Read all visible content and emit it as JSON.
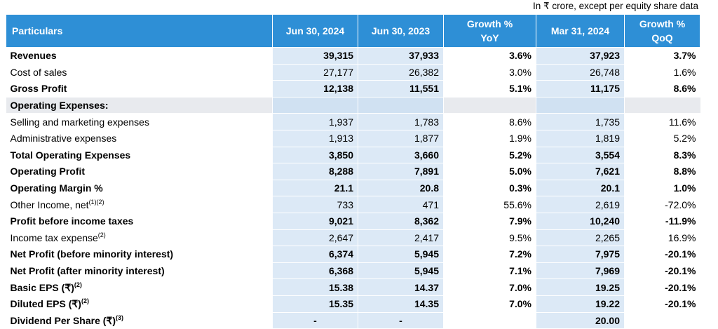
{
  "note": "In ₹ crore, except per equity share data",
  "header": {
    "particulars": "Particulars",
    "col1": "Jun 30, 2024",
    "col2": "Jun 30, 2023",
    "col3_line1": "Growth %",
    "col3_line2": "YoY",
    "col4": "Mar 31, 2024",
    "col5_line1": "Growth %",
    "col5_line2": "QoQ"
  },
  "rows": [
    {
      "label": "Revenues",
      "sup": "",
      "bold": true,
      "shade": false,
      "values": [
        "39,315",
        "37,933",
        "3.6%",
        "37,923",
        "3.7%"
      ]
    },
    {
      "label": "Cost of sales",
      "sup": "",
      "bold": false,
      "shade": false,
      "values": [
        "27,177",
        "26,382",
        "3.0%",
        "26,748",
        "1.6%"
      ]
    },
    {
      "label": "Gross Profit",
      "sup": "",
      "bold": true,
      "shade": false,
      "values": [
        "12,138",
        "11,551",
        "5.1%",
        "11,175",
        "8.6%"
      ]
    },
    {
      "label": "Operating Expenses:",
      "sup": "",
      "bold": true,
      "shade": true,
      "values": [
        "",
        "",
        "",
        "",
        ""
      ]
    },
    {
      "label": "Selling and marketing expenses",
      "sup": "",
      "bold": false,
      "shade": false,
      "values": [
        "1,937",
        "1,783",
        "8.6%",
        "1,735",
        "11.6%"
      ]
    },
    {
      "label": "Administrative expenses",
      "sup": "",
      "bold": false,
      "shade": false,
      "values": [
        "1,913",
        "1,877",
        "1.9%",
        "1,819",
        "5.2%"
      ]
    },
    {
      "label": "Total Operating Expenses",
      "sup": "",
      "bold": true,
      "shade": false,
      "values": [
        "3,850",
        "3,660",
        "5.2%",
        "3,554",
        "8.3%"
      ]
    },
    {
      "label": "Operating Profit",
      "sup": "",
      "bold": true,
      "shade": false,
      "values": [
        "8,288",
        "7,891",
        "5.0%",
        "7,621",
        "8.8%"
      ]
    },
    {
      "label": "Operating Margin %",
      "sup": "",
      "bold": true,
      "shade": false,
      "values": [
        "21.1",
        "20.8",
        "0.3%",
        "20.1",
        "1.0%"
      ]
    },
    {
      "label": "Other Income, net",
      "sup": "(1)(2)",
      "bold": false,
      "shade": false,
      "values": [
        "733",
        "471",
        "55.6%",
        "2,619",
        "-72.0%"
      ]
    },
    {
      "label": "Profit before income taxes",
      "sup": "",
      "bold": true,
      "shade": false,
      "values": [
        "9,021",
        "8,362",
        "7.9%",
        "10,240",
        "-11.9%"
      ]
    },
    {
      "label": "Income tax expense",
      "sup": "(2)",
      "bold": false,
      "shade": false,
      "values": [
        "2,647",
        "2,417",
        "9.5%",
        "2,265",
        "16.9%"
      ]
    },
    {
      "label": "Net Profit (before minority interest)",
      "sup": "",
      "bold": true,
      "shade": false,
      "values": [
        "6,374",
        "5,945",
        "7.2%",
        "7,975",
        "-20.1%"
      ]
    },
    {
      "label": "Net Profit (after minority interest)",
      "sup": "",
      "bold": true,
      "shade": false,
      "values": [
        "6,368",
        "5,945",
        "7.1%",
        "7,969",
        "-20.1%"
      ]
    },
    {
      "label": "Basic EPS (₹)",
      "sup": "(2)",
      "bold": true,
      "shade": false,
      "values": [
        "15.38",
        "14.37",
        "7.0%",
        "19.25",
        "-20.1%"
      ]
    },
    {
      "label": "Diluted EPS (₹)",
      "sup": "(2)",
      "bold": true,
      "shade": false,
      "values": [
        "15.35",
        "14.35",
        "7.0%",
        "19.22",
        "-20.1%"
      ]
    },
    {
      "label": "Dividend Per Share (₹)",
      "sup": "(3)",
      "bold": true,
      "shade": false,
      "values": [
        "-",
        "-",
        "",
        "20.00",
        ""
      ]
    }
  ]
}
